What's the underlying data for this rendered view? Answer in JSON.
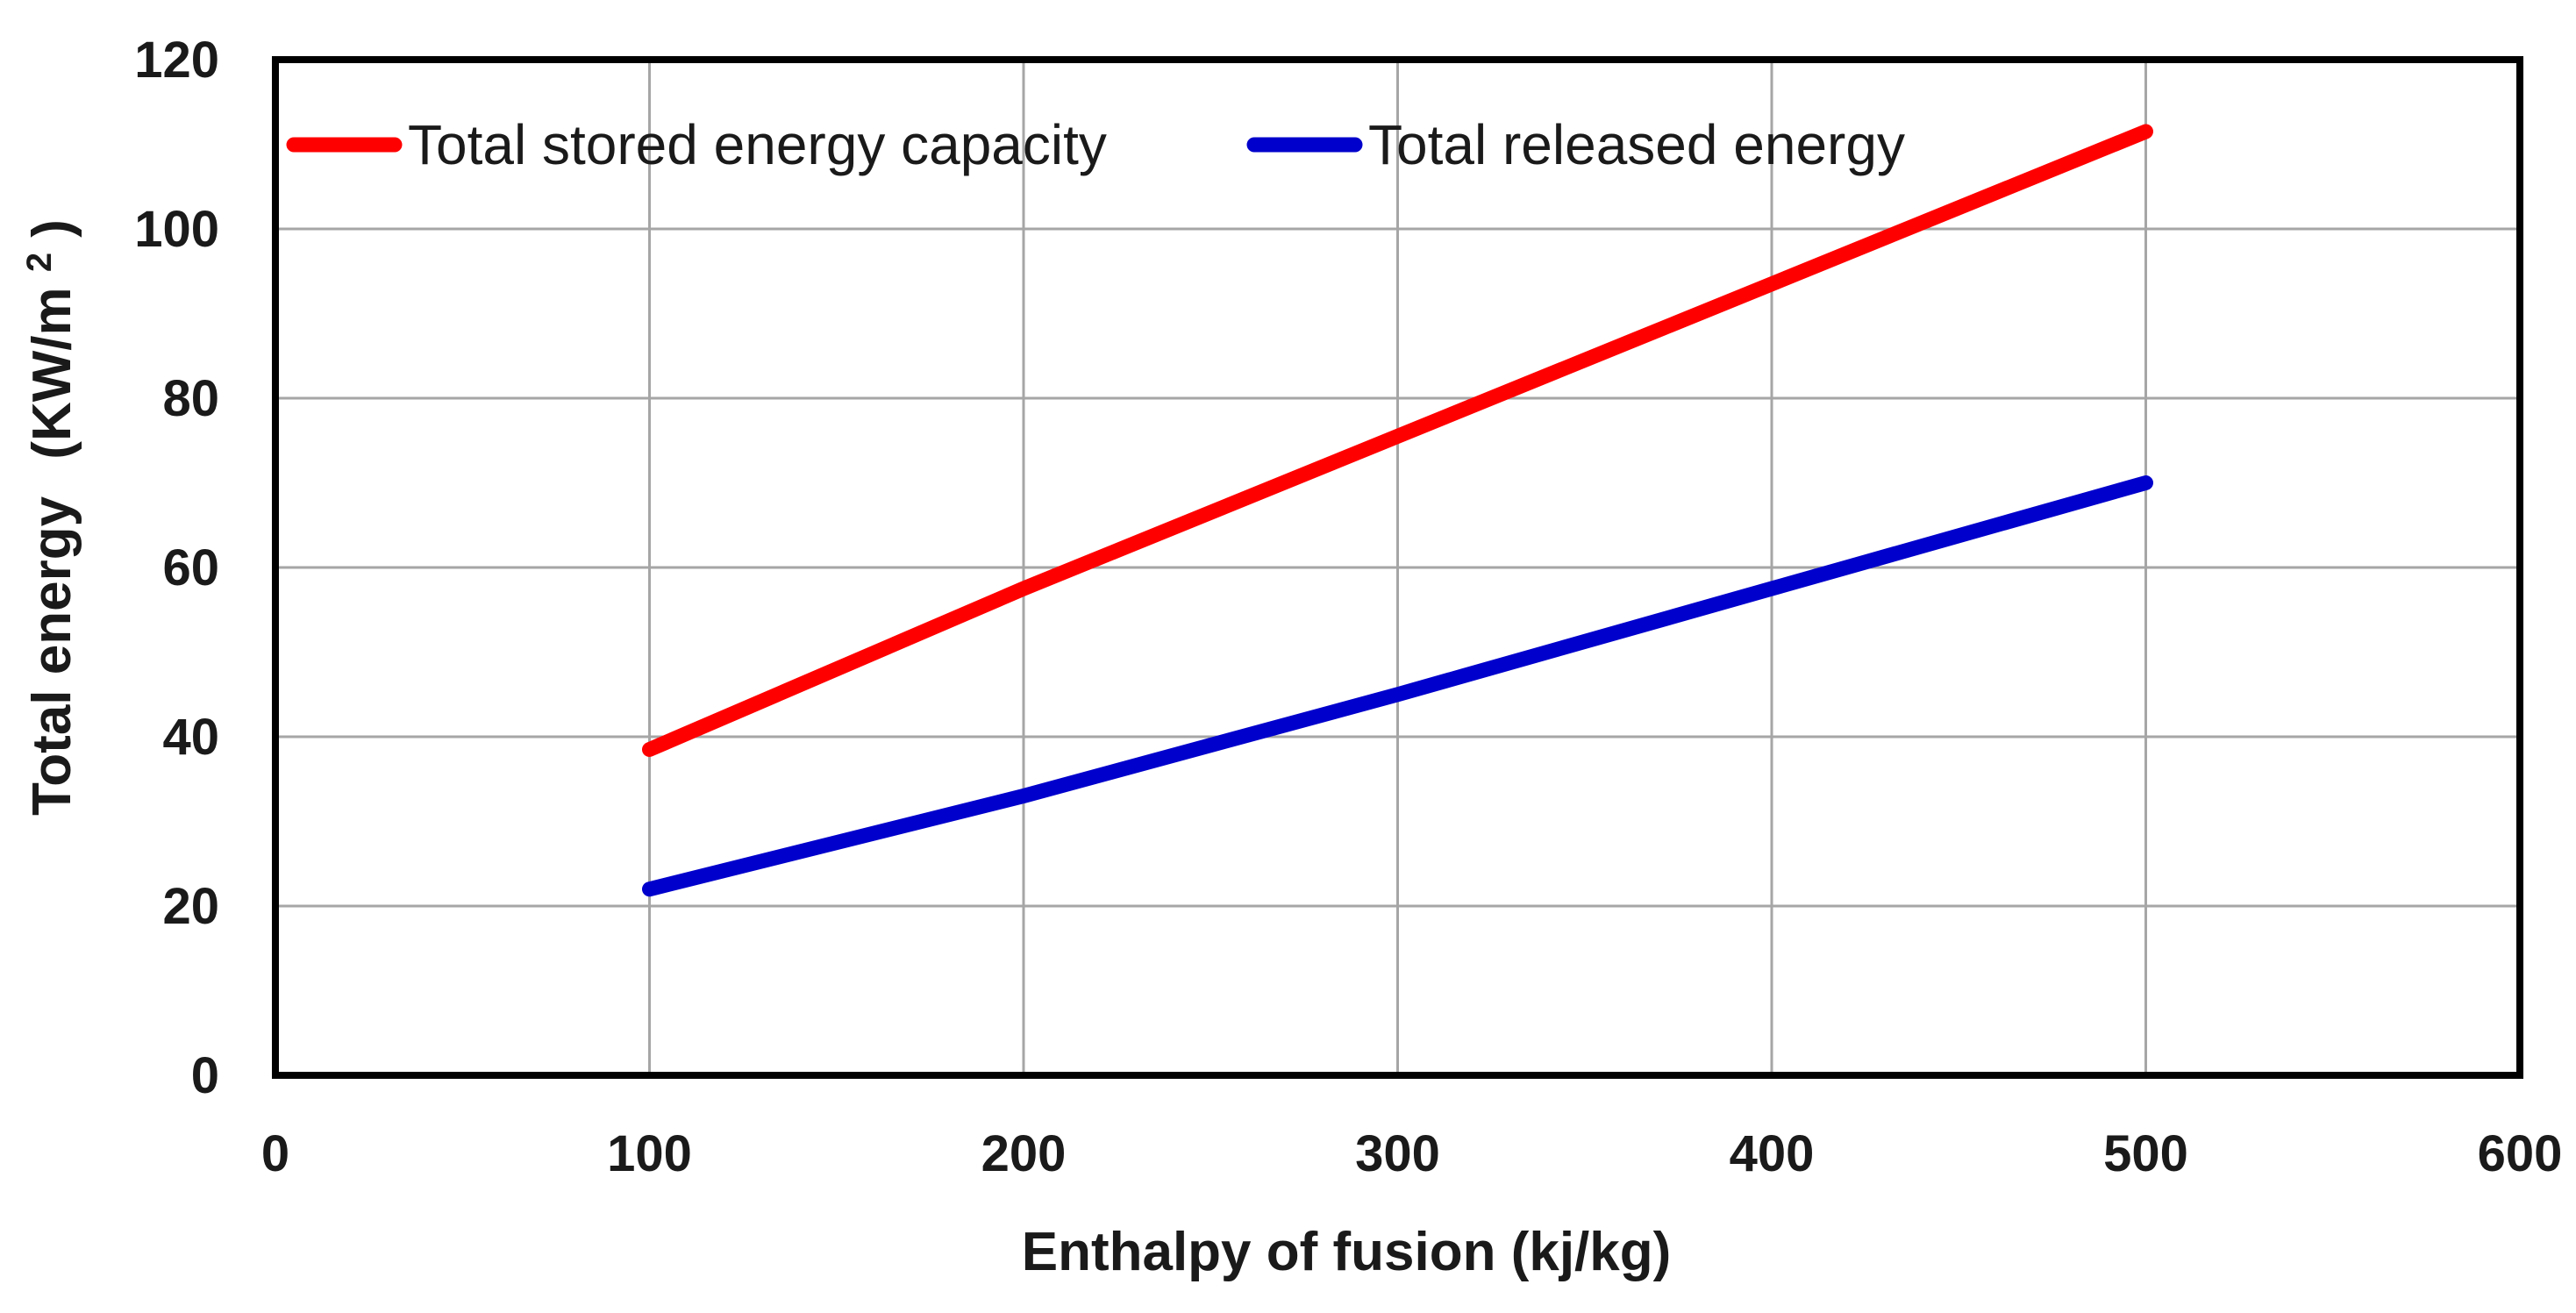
{
  "chart_data": {
    "type": "line",
    "title": "",
    "xlabel": "Enthalpy of fusion (kj/kg)",
    "ylabel": {
      "main": "Total energy",
      "unit_prefix": "(KW/m",
      "unit_superscript": "2",
      "unit_suffix": ")"
    },
    "xlim": [
      0,
      600
    ],
    "ylim": [
      0,
      120
    ],
    "x_ticks": [
      0,
      100,
      200,
      300,
      400,
      500,
      600
    ],
    "y_ticks": [
      0,
      20,
      40,
      60,
      80,
      100,
      120
    ],
    "grid": true,
    "legend_position": "top",
    "x": [
      100,
      200,
      300,
      400,
      500
    ],
    "series": [
      {
        "name": "Total stored energy capacity",
        "color": "#ff0000",
        "values": [
          38.5,
          57.5,
          75.5,
          93.5,
          111.5
        ]
      },
      {
        "name": "Total released energy",
        "color": "#0000cc",
        "values": [
          22,
          33,
          45,
          57.5,
          70
        ]
      }
    ]
  }
}
